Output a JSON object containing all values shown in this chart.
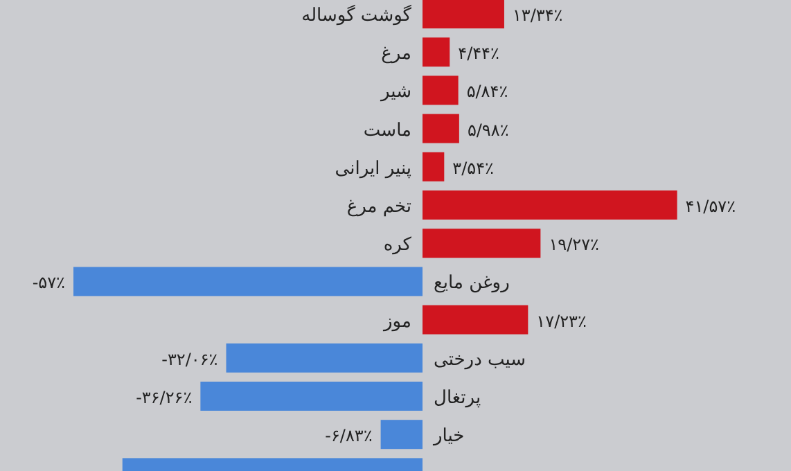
{
  "chart_data": {
    "type": "bar",
    "orientation": "horizontal",
    "categories": [
      "گوشت گوساله",
      "مرغ",
      "شیر",
      "ماست",
      "پنیر ایرانی",
      "تخم مرغ",
      "کره",
      "روغن مایع",
      "موز",
      "سیب درختی",
      "پرتغال",
      "خیار",
      null
    ],
    "values": [
      13.34,
      4.44,
      5.84,
      5.98,
      3.54,
      41.57,
      19.27,
      -57,
      17.23,
      -32.06,
      -36.26,
      -6.83,
      -49
    ],
    "value_labels": [
      "۱۳/۳۴٪",
      "۴/۴۴٪",
      "۵/۸۴٪",
      "۵/۹۸٪",
      "۳/۵۴٪",
      "۴۱/۵۷٪",
      "۱۹/۲۷٪",
      "-۵۷٪",
      "۱۷/۲۳٪",
      "-۳۲/۰۶٪",
      "-۳۶/۲۶٪",
      "-۶/۸۳٪",
      null
    ],
    "colors": [
      "#d0151f",
      "#d0151f",
      "#d0151f",
      "#d0151f",
      "#d0151f",
      "#d0151f",
      "#d0151f",
      "#4a87d9",
      "#d0151f",
      "#4a87d9",
      "#4a87d9",
      "#4a87d9",
      "#4a87d9"
    ]
  }
}
